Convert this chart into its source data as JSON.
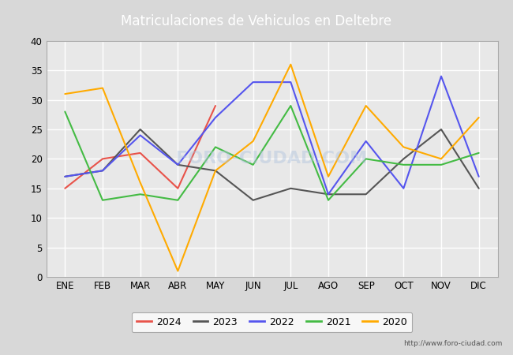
{
  "title": "Matriculaciones de Vehiculos en Deltebre",
  "title_color": "#ffffff",
  "title_bg_color": "#4472c4",
  "months": [
    "ENE",
    "FEB",
    "MAR",
    "ABR",
    "MAY",
    "JUN",
    "JUL",
    "AGO",
    "SEP",
    "OCT",
    "NOV",
    "DIC"
  ],
  "series": {
    "2024": {
      "color": "#e8534a",
      "values": [
        15,
        20,
        21,
        15,
        29,
        null,
        null,
        null,
        null,
        null,
        null,
        null
      ]
    },
    "2023": {
      "color": "#555555",
      "values": [
        17,
        18,
        25,
        19,
        18,
        13,
        15,
        14,
        14,
        20,
        25,
        15
      ]
    },
    "2022": {
      "color": "#5555ee",
      "values": [
        17,
        18,
        24,
        19,
        27,
        33,
        33,
        14,
        23,
        15,
        34,
        17
      ]
    },
    "2021": {
      "color": "#44bb44",
      "values": [
        28,
        13,
        14,
        13,
        22,
        19,
        29,
        13,
        20,
        19,
        19,
        21
      ]
    },
    "2020": {
      "color": "#ffaa00",
      "values": [
        31,
        32,
        16,
        1,
        18,
        23,
        36,
        17,
        29,
        22,
        20,
        27
      ]
    }
  },
  "ylim": [
    0,
    40
  ],
  "yticks": [
    0,
    5,
    10,
    15,
    20,
    25,
    30,
    35,
    40
  ],
  "bg_color": "#d8d8d8",
  "plot_bg_color": "#e8e8e8",
  "grid_color": "#ffffff",
  "url": "http://www.foro-ciudad.com",
  "legend_order": [
    "2024",
    "2023",
    "2022",
    "2021",
    "2020"
  ]
}
